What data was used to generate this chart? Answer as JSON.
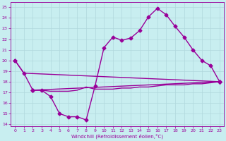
{
  "background_color": "#c8eef0",
  "grid_color": "#b0d8dc",
  "line_color": "#990099",
  "marker": "D",
  "markersize": 2.5,
  "linewidth": 1.0,
  "xlabel": "Windchill (Refroidissement éolien,°C)",
  "xlim": [
    -0.5,
    23.5
  ],
  "ylim": [
    13.8,
    25.5
  ],
  "yticks": [
    14,
    15,
    16,
    17,
    18,
    19,
    20,
    21,
    22,
    23,
    24,
    25
  ],
  "xticks": [
    0,
    1,
    2,
    3,
    4,
    5,
    6,
    7,
    8,
    9,
    10,
    11,
    12,
    13,
    14,
    15,
    16,
    17,
    18,
    19,
    20,
    21,
    22,
    23
  ],
  "line1_x": [
    0,
    1,
    23
  ],
  "line1_y": [
    20.0,
    18.8,
    18.0
  ],
  "line2_x": [
    2,
    23
  ],
  "line2_y": [
    17.2,
    18.0
  ],
  "line3_x": [
    0,
    1,
    2,
    3,
    4,
    5,
    6,
    7,
    8,
    9,
    10,
    11,
    12,
    13,
    14,
    15,
    16,
    17,
    18,
    19,
    20,
    21,
    22,
    23
  ],
  "line3_y": [
    20.0,
    18.8,
    17.2,
    17.2,
    16.6,
    15.0,
    14.7,
    14.7,
    14.4,
    17.6,
    21.2,
    22.2,
    21.9,
    22.1,
    22.8,
    24.1,
    24.9,
    24.3,
    23.2,
    22.2,
    21.0,
    20.0,
    19.5,
    18.0
  ],
  "line4_x": [
    2,
    3,
    4,
    5,
    6,
    7,
    8,
    9,
    10,
    11,
    12,
    13,
    14,
    15,
    16,
    17,
    18,
    19,
    20,
    21,
    22,
    23
  ],
  "line4_y": [
    17.2,
    17.2,
    17.1,
    17.1,
    17.1,
    17.2,
    17.5,
    17.3,
    17.3,
    17.3,
    17.4,
    17.4,
    17.5,
    17.5,
    17.6,
    17.7,
    17.7,
    17.7,
    17.8,
    17.8,
    17.9,
    18.0
  ]
}
